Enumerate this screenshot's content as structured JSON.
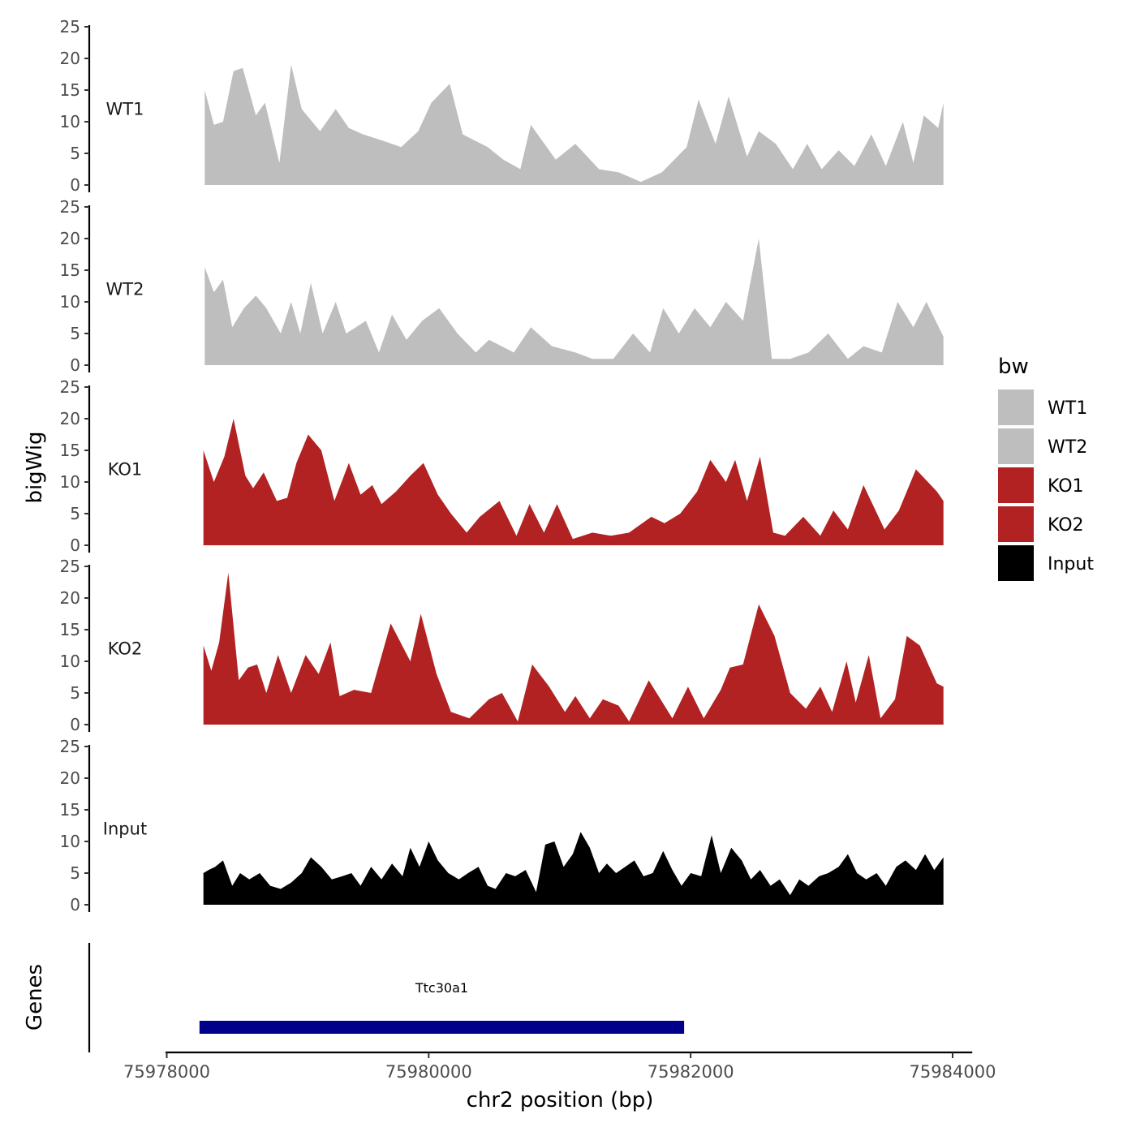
{
  "chart_data": {
    "type": "area",
    "title": "",
    "xlabel": "chr2 position (bp)",
    "ylabel": "bigWig",
    "genes_label": "Genes",
    "xlim": [
      75977990,
      75984150
    ],
    "x_ticks": [
      75978000,
      75980000,
      75982000,
      75984000
    ],
    "x_tick_labels": [
      "75978000",
      "75980000",
      "75982000",
      "75984000"
    ],
    "ylim": [
      0,
      25
    ],
    "y_ticks": [
      0,
      5,
      10,
      15,
      20,
      25
    ],
    "y_tick_labels": [
      "0",
      "5",
      "10",
      "15",
      "20",
      "25"
    ],
    "legend": {
      "title": "bw",
      "position": "right",
      "entries": [
        {
          "label": "WT1",
          "color": "#bebebe"
        },
        {
          "label": "WT2",
          "color": "#bebebe"
        },
        {
          "label": "KO1",
          "color": "#b22222"
        },
        {
          "label": "KO2",
          "color": "#b22222"
        },
        {
          "label": "Input",
          "color": "#000000"
        }
      ]
    },
    "series": [
      {
        "name": "WT1",
        "color": "#bebebe",
        "x": [
          75978290,
          75978360,
          75978430,
          75978510,
          75978580,
          75978680,
          75978750,
          75978860,
          75978950,
          75979030,
          75979170,
          75979290,
          75979390,
          75979500,
          75979650,
          75979790,
          75979920,
          75980020,
          75980160,
          75980260,
          75980450,
          75980570,
          75980700,
          75980780,
          75980970,
          75981120,
          75981300,
          75981450,
          75981620,
          75981780,
          75981970,
          75982060,
          75982190,
          75982290,
          75982430,
          75982520,
          75982650,
          75982780,
          75982890,
          75983000,
          75983130,
          75983250,
          75983380,
          75983490,
          75983620,
          75983700,
          75983780,
          75983890,
          75983930
        ],
        "values": [
          15,
          9.5,
          10,
          18,
          18.5,
          11,
          13,
          3.5,
          19,
          12,
          8.5,
          12,
          9,
          8,
          7,
          6,
          8.5,
          13,
          16,
          8,
          6,
          4,
          2.5,
          9.5,
          4,
          6.5,
          2.5,
          2,
          0.5,
          2,
          6,
          13.5,
          6.5,
          14,
          4.5,
          8.5,
          6.5,
          2.5,
          6.5,
          2.5,
          5.5,
          3,
          8,
          3,
          10,
          3.5,
          11,
          9,
          13
        ]
      },
      {
        "name": "WT2",
        "color": "#bebebe",
        "x": [
          75978290,
          75978360,
          75978430,
          75978500,
          75978590,
          75978680,
          75978760,
          75978870,
          75978950,
          75979020,
          75979100,
          75979190,
          75979290,
          75979370,
          75979520,
          75979620,
          75979720,
          75979830,
          75979950,
          75980080,
          75980220,
          75980360,
          75980460,
          75980650,
          75980780,
          75980940,
          75981120,
          75981250,
          75981410,
          75981560,
          75981690,
          75981790,
          75981910,
          75982030,
          75982150,
          75982270,
          75982400,
          75982520,
          75982620,
          75982760,
          75982900,
          75983050,
          75983200,
          75983320,
          75983460,
          75983580,
          75983700,
          75983800,
          75983930
        ],
        "values": [
          15.5,
          11.5,
          13.5,
          6,
          9,
          11,
          9,
          5,
          10,
          5,
          13,
          5,
          10,
          5,
          7,
          2,
          8,
          4,
          7,
          9,
          5,
          2,
          4,
          2,
          6,
          3,
          2,
          1,
          1,
          5,
          2,
          9,
          5,
          9,
          6,
          10,
          7,
          20,
          1,
          1,
          2,
          5,
          1,
          3,
          2,
          10,
          6,
          10,
          4.5
        ]
      },
      {
        "name": "KO1",
        "color": "#b22222",
        "x": [
          75978280,
          75978360,
          75978440,
          75978510,
          75978600,
          75978660,
          75978740,
          75978840,
          75978920,
          75978990,
          75979080,
          75979180,
          75979280,
          75979390,
          75979480,
          75979570,
          75979640,
          75979750,
          75979860,
          75979960,
          75980070,
          75980170,
          75980290,
          75980390,
          75980540,
          75980670,
          75980770,
          75980880,
          75980980,
          75981100,
          75981250,
          75981390,
          75981530,
          75981700,
          75981800,
          75981920,
          75982050,
          75982150,
          75982270,
          75982340,
          75982430,
          75982530,
          75982630,
          75982720,
          75982860,
          75982990,
          75983090,
          75983200,
          75983320,
          75983480,
          75983590,
          75983720,
          75983880,
          75983930
        ],
        "values": [
          15,
          10,
          14,
          20,
          11,
          9,
          11.5,
          7,
          7.5,
          13,
          17.5,
          15,
          7,
          13,
          8,
          9.5,
          6.5,
          8.5,
          11,
          13,
          8,
          5,
          2,
          4.5,
          7,
          1.5,
          6.5,
          2,
          6.5,
          1,
          2,
          1.5,
          2,
          4.5,
          3.5,
          5,
          8.5,
          13.5,
          10,
          13.5,
          7,
          14,
          2,
          1.5,
          4.5,
          1.5,
          5.5,
          2.5,
          9.5,
          2.5,
          5.5,
          12,
          8.5,
          7
        ]
      },
      {
        "name": "KO2",
        "color": "#b22222",
        "x": [
          75978280,
          75978340,
          75978400,
          75978470,
          75978550,
          75978620,
          75978690,
          75978760,
          75978850,
          75978950,
          75979060,
          75979160,
          75979250,
          75979320,
          75979430,
          75979560,
          75979710,
          75979860,
          75979940,
          75980060,
          75980170,
          75980310,
          75980460,
          75980560,
          75980680,
          75980790,
          75980920,
          75981040,
          75981120,
          75981230,
          75981330,
          75981450,
          75981530,
          75981680,
          75981860,
          75981980,
          75982100,
          75982230,
          75982300,
          75982400,
          75982520,
          75982640,
          75982760,
          75982880,
          75982990,
          75983080,
          75983190,
          75983260,
          75983360,
          75983450,
          75983560,
          75983650,
          75983750,
          75983880,
          75983930
        ],
        "values": [
          12.5,
          8.5,
          13,
          24,
          7,
          9,
          9.5,
          5,
          11,
          5,
          11,
          8,
          13,
          4.5,
          5.5,
          5,
          16,
          10,
          17.5,
          8,
          2,
          1,
          4,
          5,
          0.5,
          9.5,
          6,
          2,
          4.5,
          1,
          4,
          3,
          0.5,
          7,
          1,
          6,
          1,
          5.5,
          9,
          9.5,
          19,
          14,
          5,
          2.5,
          6,
          2,
          10,
          3.5,
          11,
          1,
          4,
          14,
          12.5,
          6.5,
          6
        ]
      },
      {
        "name": "Input",
        "color": "#000000",
        "x": [
          75978280,
          75978320,
          75978370,
          75978430,
          75978500,
          75978560,
          75978630,
          75978710,
          75978790,
          75978870,
          75978950,
          75979030,
          75979100,
          75979180,
          75979260,
          75979340,
          75979410,
          75979480,
          75979560,
          75979640,
          75979720,
          75979800,
          75979860,
          75979930,
          75980000,
          75980070,
          75980150,
          75980230,
          75980300,
          75980380,
          75980450,
          75980510,
          75980590,
          75980660,
          75980740,
          75980820,
          75980890,
          75980960,
          75981030,
          75981100,
          75981160,
          75981230,
          75981300,
          75981360,
          75981430,
          75981500,
          75981570,
          75981640,
          75981710,
          75981790,
          75981860,
          75981930,
          75982000,
          75982080,
          75982160,
          75982230,
          75982310,
          75982390,
          75982460,
          75982530,
          75982610,
          75982680,
          75982760,
          75982830,
          75982900,
          75982980,
          75983050,
          75983130,
          75983200,
          75983270,
          75983340,
          75983420,
          75983490,
          75983570,
          75983640,
          75983720,
          75983790,
          75983860,
          75983930
        ],
        "values": [
          5,
          5.5,
          6,
          7,
          3,
          5,
          4,
          5,
          3,
          2.5,
          3.5,
          5,
          7.5,
          6,
          4,
          4.5,
          5,
          3,
          6,
          4,
          6.5,
          4.5,
          9,
          6,
          10,
          7,
          5,
          4,
          5,
          6,
          3,
          2.5,
          5,
          4.5,
          5.5,
          2,
          9.5,
          10,
          6,
          8,
          11.5,
          9,
          5,
          6.5,
          5,
          6,
          7,
          4.5,
          5,
          8.5,
          5.5,
          3,
          5,
          4.5,
          11,
          5,
          9,
          7,
          4,
          5.5,
          3,
          4,
          1.5,
          4,
          3,
          4.5,
          5,
          6,
          8,
          5,
          4,
          5,
          3,
          6,
          7,
          5.5,
          8,
          5.5,
          7.5
        ]
      }
    ],
    "genes": [
      {
        "name": "Ttc30a1",
        "start": 75978250,
        "end": 75981950,
        "color": "#00008b"
      }
    ]
  }
}
